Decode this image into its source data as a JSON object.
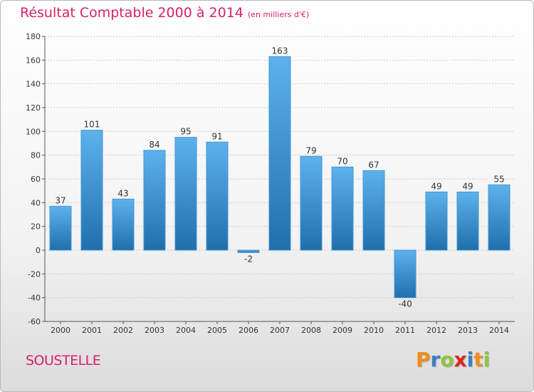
{
  "header": {
    "title": "Résultat Comptable 2000 à 2014",
    "unit": "(en milliers d'€)"
  },
  "footer": {
    "commune": "SOUSTELLE",
    "logo_letters": [
      "P",
      "r",
      "o",
      "x",
      "i",
      "t",
      "i"
    ],
    "logo_colors": [
      "#f28c1b",
      "#3a7ecb",
      "#8cc63f",
      "#e2231a",
      "#3a7ecb",
      "#f28c1b",
      "#8cc63f"
    ]
  },
  "colors": {
    "title": "#d6216a",
    "bar_light": "#5eb2ec",
    "bar_dark": "#1f6fad",
    "grid": "#cccccc"
  },
  "chart_data": {
    "type": "bar",
    "categories": [
      "2000",
      "2001",
      "2002",
      "2003",
      "2004",
      "2005",
      "2006",
      "2007",
      "2008",
      "2009",
      "2010",
      "2011",
      "2012",
      "2013",
      "2014"
    ],
    "values": [
      37,
      101,
      43,
      84,
      95,
      91,
      -2,
      163,
      79,
      70,
      67,
      -40,
      49,
      49,
      55
    ],
    "ylim": [
      -60,
      180
    ],
    "yticks": [
      -60,
      -40,
      -20,
      0,
      20,
      40,
      60,
      80,
      100,
      120,
      140,
      160,
      180
    ],
    "grid": "horizontal dotted",
    "xlabel": "",
    "ylabel": ""
  }
}
